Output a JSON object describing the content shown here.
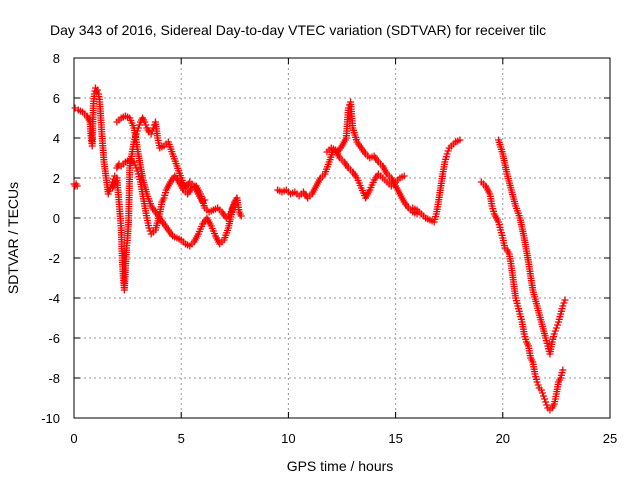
{
  "chart_data": {
    "type": "scatter",
    "title": "Day 343 of 2016, Sidereal Day-to-day VTEC variation (SDTVAR) for receiver tilc",
    "xlabel": "GPS time / hours",
    "ylabel": "SDTVAR / TECUs",
    "xlim": [
      0,
      25
    ],
    "ylim": [
      -10,
      8
    ],
    "xticks": [
      "0",
      "5",
      "10",
      "15",
      "20",
      "25"
    ],
    "yticks": [
      "8",
      "6",
      "4",
      "2",
      "0",
      "-2",
      "-4",
      "-6",
      "-8",
      "-10"
    ],
    "grid": true,
    "marker": "+",
    "color": "#ff0000",
    "series": [
      {
        "x": [
          0.0,
          0.05,
          0.1,
          0.15
        ],
        "y": [
          1.7,
          1.6,
          1.7,
          1.6
        ]
      },
      {
        "x": [
          0.05,
          0.2,
          0.4,
          0.6,
          0.75,
          0.8,
          0.85,
          0.9,
          0.95,
          1.0,
          1.05,
          1.1,
          1.15,
          1.2,
          1.25,
          1.3,
          1.35,
          1.4,
          1.5,
          1.6,
          1.7,
          1.8,
          1.9,
          2.0
        ],
        "y": [
          5.5,
          5.4,
          5.3,
          5.1,
          4.8,
          4.0,
          3.6,
          5.6,
          6.2,
          6.5,
          6.3,
          6.4,
          6.2,
          5.8,
          5.0,
          4.2,
          3.5,
          2.8,
          2.0,
          1.2,
          1.5,
          1.8,
          2.1,
          2.0
        ]
      },
      {
        "x": [
          1.8,
          1.9,
          2.0,
          2.1,
          2.2,
          2.25,
          2.3,
          2.35,
          2.4,
          2.45,
          2.5,
          2.55,
          2.6,
          2.7,
          2.8,
          2.9,
          3.0,
          3.1,
          3.2,
          3.3,
          3.4,
          3.5,
          3.6,
          3.7,
          3.8,
          3.9,
          4.0,
          4.2,
          4.4,
          4.6,
          4.8,
          5.0,
          5.2,
          5.4,
          5.6,
          5.8,
          6.0,
          6.1
        ],
        "y": [
          1.5,
          1.7,
          2.0,
          0.8,
          -0.5,
          -2.0,
          -3.0,
          -3.6,
          -2.5,
          -1.5,
          -1.0,
          0.0,
          2.5,
          3.2,
          3.8,
          4.2,
          4.5,
          4.8,
          5.0,
          4.8,
          4.5,
          4.3,
          4.2,
          4.5,
          4.8,
          4.0,
          3.5,
          3.6,
          3.8,
          3.2,
          2.6,
          2.0,
          1.5,
          1.8,
          1.6,
          1.2,
          0.8,
          0.9
        ]
      },
      {
        "x": [
          2.0,
          2.1,
          2.2,
          2.4,
          2.6,
          2.8,
          2.9,
          3.0,
          3.1,
          3.2,
          3.3,
          3.4,
          3.5,
          3.6,
          3.8,
          4.0,
          4.1,
          4.2,
          4.3,
          4.5,
          4.7,
          4.9,
          5.1,
          5.3,
          5.5,
          5.7,
          5.9,
          6.1,
          6.3,
          6.5,
          6.7,
          6.9,
          7.1,
          7.3,
          7.5,
          7.6,
          7.7,
          7.8
        ],
        "y": [
          2.5,
          2.7,
          2.6,
          2.8,
          2.9,
          2.8,
          2.5,
          2.2,
          1.8,
          1.2,
          0.6,
          0.0,
          -0.5,
          -0.8,
          -0.6,
          0.2,
          0.8,
          1.0,
          1.4,
          1.8,
          2.1,
          1.8,
          1.4,
          1.2,
          1.5,
          1.6,
          1.2,
          0.5,
          0.3,
          0.4,
          0.5,
          0.3,
          0.0,
          0.2,
          0.8,
          1.0,
          0.3,
          0.1
        ]
      },
      {
        "x": [
          2.0,
          2.2,
          2.4,
          2.6,
          2.8,
          3.0,
          3.2,
          3.4,
          3.6,
          3.8,
          4.0,
          4.2,
          4.4,
          4.6,
          4.8,
          5.0,
          5.2,
          5.4,
          5.6,
          5.8,
          6.0,
          6.2,
          6.4,
          6.6,
          6.8,
          7.0,
          7.2,
          7.4,
          7.6
        ],
        "y": [
          4.8,
          5.0,
          5.1,
          5.0,
          4.5,
          3.2,
          2.0,
          1.2,
          0.6,
          0.3,
          0.0,
          -0.3,
          -0.6,
          -0.9,
          -1.0,
          -1.1,
          -1.3,
          -1.4,
          -1.2,
          -0.8,
          -0.3,
          0.0,
          -0.4,
          -0.9,
          -1.3,
          -1.1,
          -0.5,
          0.5,
          1.0
        ]
      },
      {
        "x": [
          9.5,
          9.7,
          9.9,
          10.1,
          10.3,
          10.5,
          10.7,
          10.9,
          11.1,
          11.3,
          11.5,
          11.7,
          11.9,
          12.1,
          12.3,
          12.5,
          12.7,
          12.8,
          12.9,
          13.0,
          13.2,
          13.4,
          13.6,
          13.8,
          14.0,
          14.2,
          14.4,
          14.6,
          14.8,
          15.0,
          15.2,
          15.4,
          15.6,
          15.8,
          16.0
        ],
        "y": [
          1.4,
          1.3,
          1.4,
          1.2,
          1.3,
          1.1,
          1.3,
          1.0,
          1.2,
          1.6,
          2.0,
          2.2,
          2.8,
          3.4,
          3.3,
          3.6,
          4.0,
          5.5,
          5.8,
          4.5,
          3.8,
          3.5,
          3.2,
          3.0,
          3.1,
          2.8,
          2.6,
          2.2,
          2.0,
          1.6,
          1.2,
          0.8,
          0.5,
          0.3,
          0.2
        ]
      },
      {
        "x": [
          11.8,
          12.0,
          12.2,
          12.4,
          12.6,
          12.8,
          13.0,
          13.2,
          13.4,
          13.6,
          13.8,
          14.0,
          14.2,
          14.4,
          14.6,
          14.8,
          15.0,
          15.2,
          15.4
        ],
        "y": [
          3.3,
          3.5,
          3.4,
          3.0,
          2.8,
          2.5,
          2.3,
          2.0,
          1.5,
          1.0,
          1.4,
          1.9,
          2.2,
          2.0,
          1.8,
          1.6,
          1.8,
          2.0,
          2.1
        ]
      },
      {
        "x": [
          15.8,
          16.0,
          16.2,
          16.4,
          16.6,
          16.8,
          16.9,
          17.0,
          17.1,
          17.2,
          17.3,
          17.4,
          17.5,
          17.6,
          17.8,
          18.0
        ],
        "y": [
          0.5,
          0.4,
          0.2,
          0.0,
          -0.1,
          -0.2,
          0.2,
          0.8,
          1.5,
          2.2,
          2.8,
          3.2,
          3.5,
          3.6,
          3.8,
          3.9
        ]
      },
      {
        "x": [
          19.0,
          19.2,
          19.4,
          19.5,
          19.6,
          19.8,
          19.9,
          20.0,
          20.1,
          20.2,
          20.3,
          20.4,
          20.5,
          20.6,
          20.7,
          20.8,
          20.9,
          21.0,
          21.1,
          21.2,
          21.3,
          21.4,
          21.5,
          21.6,
          21.7,
          21.8,
          21.9,
          22.0,
          22.1,
          22.2,
          22.3,
          22.4,
          22.5,
          22.6,
          22.7,
          22.8
        ],
        "y": [
          1.8,
          1.6,
          1.2,
          0.6,
          0.2,
          -0.2,
          -0.6,
          -1.0,
          -1.5,
          -1.6,
          -1.8,
          -2.4,
          -3.2,
          -4.0,
          -4.4,
          -4.8,
          -5.2,
          -5.8,
          -6.2,
          -6.4,
          -7.0,
          -7.2,
          -7.8,
          -8.2,
          -8.5,
          -8.6,
          -8.9,
          -9.2,
          -9.5,
          -9.6,
          -9.5,
          -9.3,
          -8.8,
          -8.2,
          -8.0,
          -7.6
        ]
      },
      {
        "x": [
          19.8,
          20.0,
          20.2,
          20.4,
          20.6,
          20.8,
          21.0,
          21.2,
          21.4,
          21.6,
          21.8,
          22.0,
          22.1,
          22.2,
          22.3,
          22.4,
          22.5,
          22.6,
          22.7,
          22.8,
          22.9
        ],
        "y": [
          3.9,
          3.2,
          2.2,
          1.4,
          0.6,
          0.0,
          -1.0,
          -2.2,
          -3.6,
          -4.4,
          -5.2,
          -6.0,
          -6.4,
          -6.8,
          -6.2,
          -5.8,
          -5.5,
          -5.2,
          -4.8,
          -4.4,
          -4.1
        ]
      }
    ]
  }
}
